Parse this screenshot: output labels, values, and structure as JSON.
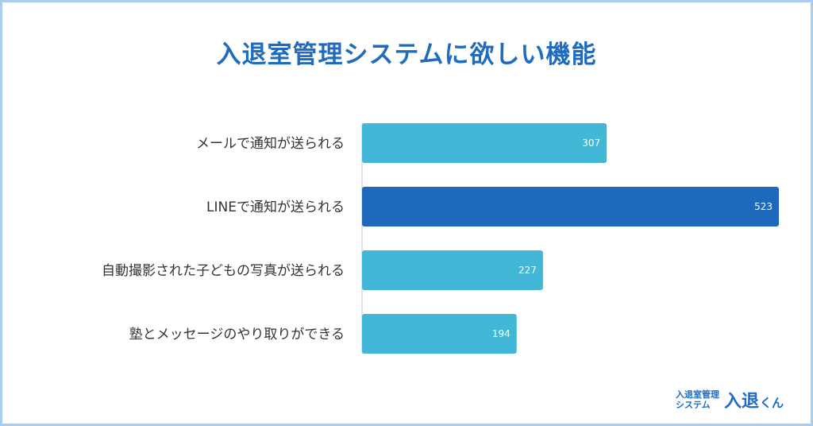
{
  "chart_data": {
    "type": "bar",
    "orientation": "horizontal",
    "title": "入退室管理システムに欲しい機能",
    "categories": [
      "メールで通知が送られる",
      "LINEで通知が送られる",
      "自動撮影された子どもの写真が送られる",
      "塾とメッセージのやり取りができる"
    ],
    "values": [
      307,
      523,
      227,
      194
    ],
    "colors": [
      "#42b8d6",
      "#1f69bd",
      "#42b8d6",
      "#42b8d6"
    ],
    "grid": false,
    "legend": "none"
  },
  "logo": {
    "line1": "入退室管理",
    "line2": "システム",
    "name": "入退",
    "suffix": "くん"
  }
}
